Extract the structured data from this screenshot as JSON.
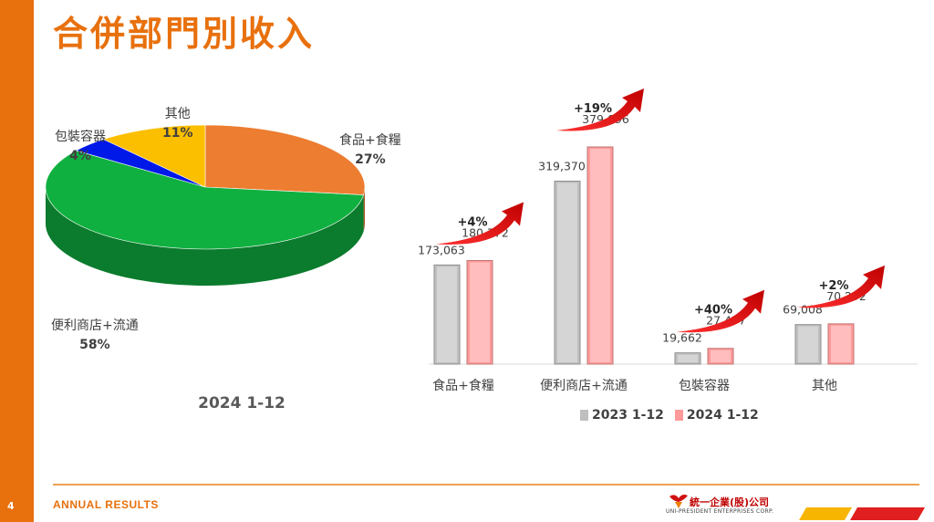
{
  "page": {
    "title": "合併部門別收入",
    "page_number": "4",
    "footer_text": "ANNUAL RESULTS",
    "logo_name": "統一企業(股)公司",
    "logo_english": "UNI-PRESIDENT ENTERPRISES CORP.",
    "accent_color": "#e8700d"
  },
  "chart_data": [
    {
      "type": "pie",
      "title": "2024 1-12",
      "slices": [
        {
          "label": "食品+食糧",
          "pct_label": "27%",
          "value": 27,
          "color": "#ed7d31"
        },
        {
          "label": "便利商店+流通",
          "pct_label": "58%",
          "value": 58,
          "color": "#10b040"
        },
        {
          "label": "包裝容器",
          "pct_label": "4%",
          "value": 4,
          "color": "#0018e8"
        },
        {
          "label": "其他",
          "pct_label": "11%",
          "value": 11,
          "color": "#fbbf00"
        }
      ]
    },
    {
      "type": "bar",
      "categories": [
        "食品+食糧",
        "便利商店+流通",
        "包裝容器",
        "其他"
      ],
      "series": [
        {
          "name": "2023 1-12",
          "values": [
            173063,
            319370,
            19662,
            69008
          ],
          "labels": [
            "173,063",
            "319,370",
            "19,662",
            "69,008"
          ],
          "color": "#bfbfbf"
        },
        {
          "name": "2024 1-12",
          "values": [
            180772,
            379096,
            27477,
            70292
          ],
          "labels": [
            "180,772",
            "379,096",
            "27,477",
            "70,292"
          ],
          "color": "#ff9a9a"
        }
      ],
      "growth_labels": [
        "+4%",
        "+19%",
        "+40%",
        "+2%"
      ],
      "ylim": [
        0,
        379096
      ]
    }
  ]
}
